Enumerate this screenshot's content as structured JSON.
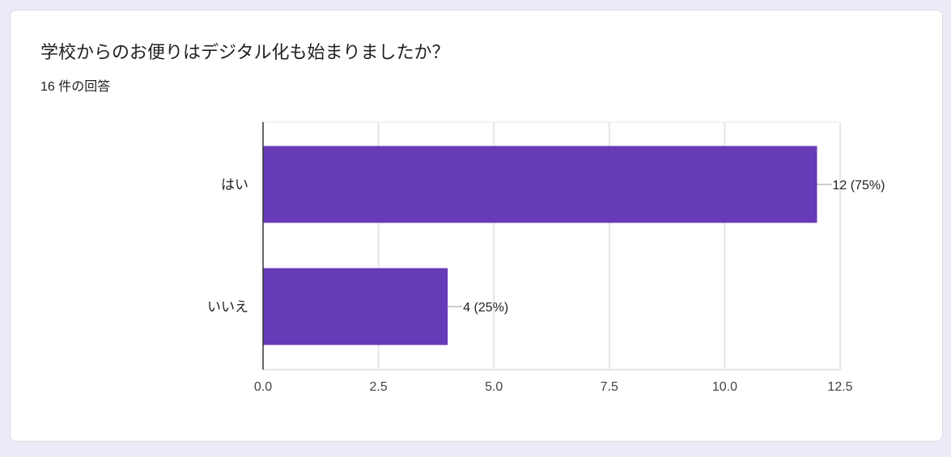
{
  "question": {
    "title": "学校からのお便りはデジタル化も始まりましたか？",
    "response_count": "16 件の回答"
  },
  "colors": {
    "bar": "#673ab7",
    "gridline": "#e6e6e6",
    "axis": "#333333",
    "page_background": "#efeaf8"
  },
  "chart_data": {
    "type": "bar",
    "orientation": "horizontal",
    "title": "",
    "xlabel": "",
    "ylabel": "",
    "categories": [
      "はい",
      "いいえ"
    ],
    "values": [
      12,
      4
    ],
    "data_labels": [
      "12 (75%)",
      "4 (25%)"
    ],
    "xlim": [
      0,
      12.5
    ],
    "xticks": [
      0,
      2.5,
      5,
      7.5,
      10,
      12.5
    ],
    "xtick_labels": [
      "0.0",
      "2.5",
      "5.0",
      "7.5",
      "10.0",
      "12.5"
    ],
    "grid": true,
    "legend": "none"
  }
}
